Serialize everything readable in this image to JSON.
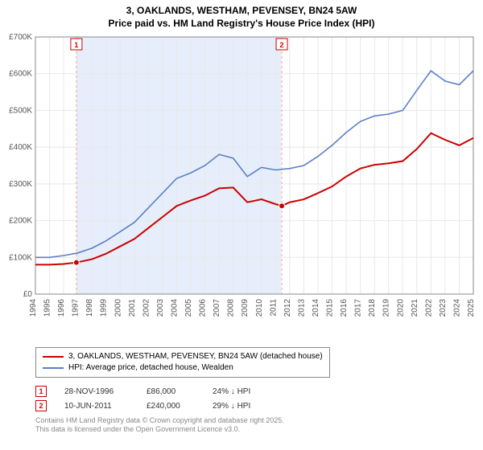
{
  "title_line1": "3, OAKLANDS, WESTHAM, PEVENSEY, BN24 5AW",
  "title_line2": "Price paid vs. HM Land Registry's House Price Index (HPI)",
  "chart": {
    "type": "line",
    "background_color": "#ffffff",
    "grid_color": "#e8e8e8",
    "plot_border_color": "#888888",
    "highlight_band_color": "#e6eefb",
    "highlight_band_xstart": 1996.9,
    "highlight_band_xend": 2011.4,
    "marker_line_color": "#ff9e9e",
    "xlim": [
      1994,
      2025
    ],
    "ylim": [
      0,
      700000
    ],
    "yticks": [
      0,
      100000,
      200000,
      300000,
      400000,
      500000,
      600000,
      700000
    ],
    "ytick_labels": [
      "£0",
      "£100K",
      "£200K",
      "£300K",
      "£400K",
      "£500K",
      "£600K",
      "£700K"
    ],
    "xticks": [
      1994,
      1995,
      1996,
      1997,
      1998,
      1999,
      2000,
      2001,
      2002,
      2003,
      2004,
      2005,
      2006,
      2007,
      2008,
      2009,
      2010,
      2011,
      2012,
      2013,
      2014,
      2015,
      2016,
      2017,
      2018,
      2019,
      2020,
      2021,
      2022,
      2023,
      2024,
      2025
    ],
    "axis_fontsize": 10,
    "axis_color": "#555555",
    "series": [
      {
        "name": "price_paid",
        "color": "#cc0000",
        "line_width": 2,
        "points": [
          [
            1994,
            80000
          ],
          [
            1995,
            80000
          ],
          [
            1996,
            82000
          ],
          [
            1996.9,
            86000
          ],
          [
            1998,
            95000
          ],
          [
            1999,
            110000
          ],
          [
            2000,
            130000
          ],
          [
            2001,
            150000
          ],
          [
            2002,
            180000
          ],
          [
            2003,
            210000
          ],
          [
            2004,
            240000
          ],
          [
            2005,
            255000
          ],
          [
            2006,
            268000
          ],
          [
            2007,
            288000
          ],
          [
            2008,
            290000
          ],
          [
            2009,
            250000
          ],
          [
            2010,
            258000
          ],
          [
            2011,
            245000
          ],
          [
            2011.44,
            240000
          ],
          [
            2012,
            250000
          ],
          [
            2013,
            258000
          ],
          [
            2014,
            275000
          ],
          [
            2015,
            293000
          ],
          [
            2016,
            320000
          ],
          [
            2017,
            342000
          ],
          [
            2018,
            352000
          ],
          [
            2019,
            356000
          ],
          [
            2020,
            362000
          ],
          [
            2021,
            395000
          ],
          [
            2022,
            438000
          ],
          [
            2023,
            420000
          ],
          [
            2024,
            405000
          ],
          [
            2025,
            425000
          ]
        ]
      },
      {
        "name": "hpi",
        "color": "#5b7fc7",
        "line_width": 1.6,
        "points": [
          [
            1994,
            100000
          ],
          [
            1995,
            100000
          ],
          [
            1996,
            105000
          ],
          [
            1997,
            112000
          ],
          [
            1998,
            125000
          ],
          [
            1999,
            145000
          ],
          [
            2000,
            170000
          ],
          [
            2001,
            195000
          ],
          [
            2002,
            235000
          ],
          [
            2003,
            275000
          ],
          [
            2004,
            315000
          ],
          [
            2005,
            330000
          ],
          [
            2006,
            350000
          ],
          [
            2007,
            380000
          ],
          [
            2008,
            370000
          ],
          [
            2009,
            320000
          ],
          [
            2010,
            345000
          ],
          [
            2011,
            338000
          ],
          [
            2012,
            342000
          ],
          [
            2013,
            350000
          ],
          [
            2014,
            375000
          ],
          [
            2015,
            405000
          ],
          [
            2016,
            440000
          ],
          [
            2017,
            470000
          ],
          [
            2018,
            485000
          ],
          [
            2019,
            490000
          ],
          [
            2020,
            500000
          ],
          [
            2021,
            555000
          ],
          [
            2022,
            608000
          ],
          [
            2023,
            580000
          ],
          [
            2024,
            570000
          ],
          [
            2025,
            608000
          ]
        ]
      }
    ],
    "sale_markers": [
      {
        "n": "1",
        "x": 1996.9,
        "y": 86000
      },
      {
        "n": "2",
        "x": 2011.44,
        "y": 240000
      }
    ]
  },
  "legend": {
    "items": [
      {
        "color": "#cc0000",
        "label": "3, OAKLANDS, WESTHAM, PEVENSEY, BN24 5AW (detached house)"
      },
      {
        "color": "#5b7fc7",
        "label": "HPI: Average price, detached house, Wealden"
      }
    ]
  },
  "marker_rows": [
    {
      "badge": "1",
      "date": "28-NOV-1996",
      "price": "£86,000",
      "diff": "24% ↓ HPI"
    },
    {
      "badge": "2",
      "date": "10-JUN-2011",
      "price": "£240,000",
      "diff": "29% ↓ HPI"
    }
  ],
  "footer_line1": "Contains HM Land Registry data © Crown copyright and database right 2025.",
  "footer_line2": "This data is licensed under the Open Government Licence v3.0."
}
